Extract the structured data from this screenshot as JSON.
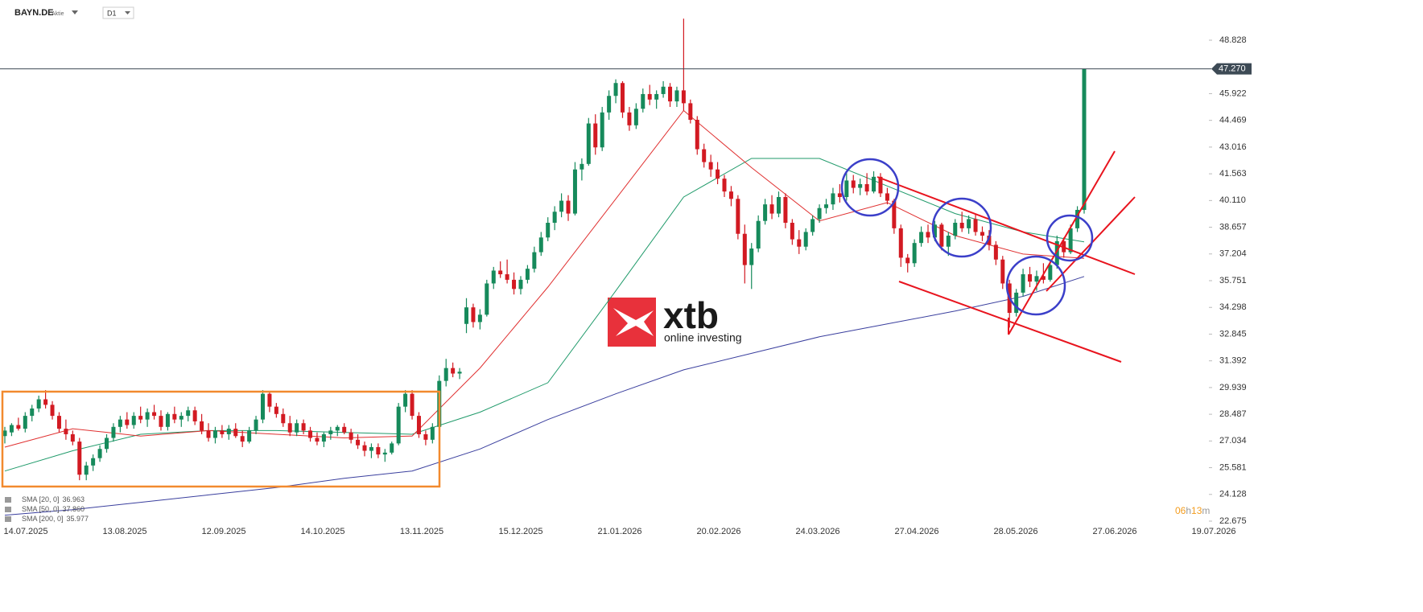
{
  "header": {
    "symbol": "BAYN.DE",
    "kind": "Aktie",
    "timeframe": "D1"
  },
  "watermark": {
    "brand": "xtb",
    "tagline": "online investing"
  },
  "timer": [
    "06",
    "h",
    "13",
    "m"
  ],
  "chart_data": {
    "type": "candlestick",
    "x_labels": [
      "14.07.2025",
      "13.08.2025",
      "12.09.2025",
      "14.10.2025",
      "13.11.2025",
      "15.12.2025",
      "21.01.2026",
      "20.02.2026",
      "24.03.2026",
      "27.04.2026",
      "28.05.2026",
      "27.06.2026",
      "19.07.2026"
    ],
    "ylim": [
      22.675,
      48.828
    ],
    "yticks": [
      {
        "value": 22.675,
        "label": "22.675"
      },
      {
        "value": 24.128,
        "label": "24.128"
      },
      {
        "value": 25.581,
        "label": "25.581"
      },
      {
        "value": 27.034,
        "label": "27.034"
      },
      {
        "value": 28.487,
        "label": "28.487"
      },
      {
        "value": 29.939,
        "label": "29.939"
      },
      {
        "value": 31.392,
        "label": "31.392"
      },
      {
        "value": 32.845,
        "label": "32.845"
      },
      {
        "value": 34.298,
        "label": "34.298"
      },
      {
        "value": 35.751,
        "label": "35.751"
      },
      {
        "value": 37.204,
        "label": "37.204"
      },
      {
        "value": 38.657,
        "label": "38.657"
      },
      {
        "value": 40.11,
        "label": "40.110"
      },
      {
        "value": 41.563,
        "label": "41.563"
      },
      {
        "value": 43.016,
        "label": "43.016"
      },
      {
        "value": 44.469,
        "label": "44.469"
      },
      {
        "value": 45.922,
        "label": "45.922"
      },
      {
        "value": 48.828,
        "label": "48.828"
      }
    ],
    "last_price": {
      "value": 47.27,
      "label": "47.270"
    },
    "up_color": "#168a5b",
    "down_color": "#d21a22",
    "candles": [
      [
        27.3,
        27.8,
        26.9,
        27.6
      ],
      [
        27.5,
        28.0,
        27.3,
        27.9
      ],
      [
        27.9,
        28.3,
        27.6,
        27.7
      ],
      [
        27.7,
        28.6,
        27.5,
        28.4
      ],
      [
        28.4,
        29.0,
        28.1,
        28.8
      ],
      [
        28.8,
        29.5,
        28.6,
        29.3
      ],
      [
        29.3,
        29.8,
        28.8,
        29.0
      ],
      [
        29.0,
        29.2,
        28.2,
        28.4
      ],
      [
        28.4,
        28.6,
        27.5,
        27.7
      ],
      [
        27.7,
        28.2,
        27.1,
        27.4
      ],
      [
        27.4,
        27.6,
        26.8,
        27.0
      ],
      [
        27.0,
        27.2,
        24.9,
        25.2
      ],
      [
        25.2,
        25.9,
        24.9,
        25.7
      ],
      [
        25.7,
        26.3,
        25.4,
        26.1
      ],
      [
        26.1,
        26.8,
        25.9,
        26.6
      ],
      [
        26.6,
        27.4,
        26.4,
        27.2
      ],
      [
        27.2,
        28.0,
        27.0,
        27.8
      ],
      [
        27.8,
        28.4,
        27.5,
        28.2
      ],
      [
        28.2,
        28.6,
        27.7,
        27.9
      ],
      [
        27.9,
        28.6,
        27.7,
        28.4
      ],
      [
        28.4,
        28.9,
        28.0,
        28.2
      ],
      [
        28.2,
        28.8,
        27.8,
        28.6
      ],
      [
        28.6,
        29.0,
        28.2,
        28.4
      ],
      [
        28.4,
        28.7,
        27.6,
        27.8
      ],
      [
        27.8,
        28.6,
        27.6,
        28.5
      ],
      [
        28.5,
        28.9,
        28.0,
        28.2
      ],
      [
        28.2,
        28.6,
        27.8,
        28.4
      ],
      [
        28.4,
        28.9,
        28.1,
        28.7
      ],
      [
        28.7,
        28.9,
        27.9,
        28.1
      ],
      [
        28.1,
        28.5,
        27.4,
        27.6
      ],
      [
        27.6,
        28.0,
        27.0,
        27.2
      ],
      [
        27.2,
        27.8,
        26.9,
        27.6
      ],
      [
        27.6,
        27.9,
        27.2,
        27.4
      ],
      [
        27.4,
        27.9,
        27.1,
        27.7
      ],
      [
        27.7,
        28.0,
        27.2,
        27.3
      ],
      [
        27.3,
        27.6,
        26.7,
        27.0
      ],
      [
        27.0,
        27.8,
        26.9,
        27.6
      ],
      [
        27.6,
        28.4,
        27.4,
        28.2
      ],
      [
        28.2,
        29.8,
        28.0,
        29.6
      ],
      [
        29.6,
        29.7,
        28.6,
        28.9
      ],
      [
        28.9,
        29.1,
        28.3,
        28.5
      ],
      [
        28.5,
        28.8,
        27.8,
        28.0
      ],
      [
        28.0,
        28.4,
        27.3,
        27.5
      ],
      [
        27.5,
        28.2,
        27.3,
        28.0
      ],
      [
        28.0,
        28.2,
        27.4,
        27.6
      ],
      [
        27.6,
        27.8,
        27.0,
        27.2
      ],
      [
        27.2,
        27.5,
        26.8,
        27.0
      ],
      [
        27.0,
        27.5,
        26.7,
        27.4
      ],
      [
        27.4,
        27.8,
        27.1,
        27.6
      ],
      [
        27.6,
        27.9,
        27.3,
        27.8
      ],
      [
        27.8,
        28.0,
        27.4,
        27.5
      ],
      [
        27.5,
        27.7,
        26.9,
        27.1
      ],
      [
        27.1,
        27.4,
        26.6,
        26.8
      ],
      [
        26.8,
        27.0,
        26.2,
        26.5
      ],
      [
        26.5,
        26.9,
        26.1,
        26.7
      ],
      [
        26.7,
        26.9,
        26.1,
        26.3
      ],
      [
        26.3,
        26.6,
        25.9,
        26.4
      ],
      [
        26.4,
        27.0,
        26.3,
        26.9
      ],
      [
        26.9,
        29.1,
        26.8,
        28.9
      ],
      [
        28.9,
        29.8,
        28.6,
        29.6
      ],
      [
        29.6,
        29.8,
        28.2,
        28.4
      ],
      [
        28.4,
        28.6,
        27.2,
        27.4
      ],
      [
        27.4,
        27.6,
        26.8,
        27.1
      ],
      [
        27.1,
        28.0,
        26.9,
        27.8
      ],
      [
        27.8,
        30.6,
        27.7,
        30.3
      ],
      [
        30.3,
        31.5,
        30.0,
        31.0
      ],
      [
        31.0,
        31.3,
        30.5,
        30.7
      ],
      [
        30.7,
        31.0,
        30.4,
        30.8
      ],
      [
        33.4,
        34.8,
        32.9,
        34.3
      ],
      [
        34.3,
        34.5,
        33.2,
        33.5
      ],
      [
        33.5,
        34.2,
        33.1,
        33.9
      ],
      [
        33.9,
        35.8,
        33.8,
        35.6
      ],
      [
        35.6,
        36.5,
        35.3,
        36.3
      ],
      [
        36.3,
        36.8,
        35.9,
        36.1
      ],
      [
        36.1,
        36.9,
        35.6,
        35.8
      ],
      [
        35.8,
        36.2,
        35.0,
        35.3
      ],
      [
        35.3,
        36.0,
        35.0,
        35.8
      ],
      [
        35.8,
        36.6,
        35.6,
        36.4
      ],
      [
        36.4,
        37.6,
        36.2,
        37.3
      ],
      [
        37.3,
        38.4,
        37.1,
        38.1
      ],
      [
        38.1,
        39.2,
        37.9,
        38.9
      ],
      [
        38.9,
        39.8,
        38.5,
        39.5
      ],
      [
        39.5,
        40.5,
        39.2,
        40.1
      ],
      [
        40.1,
        40.4,
        39.0,
        39.4
      ],
      [
        39.4,
        42.2,
        39.3,
        41.8
      ],
      [
        41.8,
        42.4,
        41.2,
        42.1
      ],
      [
        42.1,
        44.6,
        42.0,
        44.3
      ],
      [
        44.3,
        44.8,
        42.6,
        43.0
      ],
      [
        43.0,
        45.2,
        42.8,
        44.9
      ],
      [
        44.9,
        46.1,
        44.5,
        45.8
      ],
      [
        45.8,
        46.7,
        45.4,
        46.5
      ],
      [
        46.5,
        46.6,
        44.6,
        44.9
      ],
      [
        44.9,
        45.2,
        43.9,
        44.2
      ],
      [
        44.2,
        45.4,
        44.0,
        45.1
      ],
      [
        45.1,
        46.2,
        44.9,
        45.9
      ],
      [
        45.9,
        46.4,
        45.3,
        45.6
      ],
      [
        45.6,
        46.1,
        45.1,
        45.9
      ],
      [
        45.9,
        46.6,
        45.7,
        46.3
      ],
      [
        46.3,
        46.5,
        45.2,
        45.5
      ],
      [
        45.5,
        46.3,
        45.2,
        46.1
      ],
      [
        46.1,
        50.0,
        45.0,
        45.4
      ],
      [
        45.4,
        45.6,
        44.3,
        44.5
      ],
      [
        44.5,
        44.7,
        42.6,
        42.9
      ],
      [
        42.9,
        43.2,
        41.9,
        42.2
      ],
      [
        42.2,
        42.6,
        41.4,
        41.8
      ],
      [
        41.8,
        42.2,
        41.0,
        41.3
      ],
      [
        41.3,
        41.5,
        40.3,
        40.6
      ],
      [
        40.6,
        40.9,
        39.8,
        40.2
      ],
      [
        40.2,
        40.4,
        38.0,
        38.3
      ],
      [
        38.3,
        38.8,
        35.6,
        36.6
      ],
      [
        36.6,
        37.8,
        35.3,
        37.5
      ],
      [
        37.5,
        39.3,
        37.3,
        39.0
      ],
      [
        39.0,
        40.2,
        38.8,
        39.9
      ],
      [
        39.9,
        40.4,
        39.1,
        39.4
      ],
      [
        39.4,
        40.6,
        39.2,
        40.3
      ],
      [
        40.3,
        40.5,
        38.6,
        38.9
      ],
      [
        38.9,
        39.1,
        37.7,
        38.0
      ],
      [
        38.0,
        38.5,
        37.2,
        37.6
      ],
      [
        37.6,
        38.6,
        37.4,
        38.4
      ],
      [
        38.4,
        39.3,
        38.2,
        39.1
      ],
      [
        39.1,
        39.9,
        38.9,
        39.7
      ],
      [
        39.7,
        40.2,
        39.4,
        39.9
      ],
      [
        39.9,
        40.8,
        39.6,
        40.5
      ],
      [
        40.5,
        41.0,
        40.0,
        40.3
      ],
      [
        40.3,
        41.6,
        40.1,
        41.2
      ],
      [
        41.2,
        41.5,
        40.5,
        40.8
      ],
      [
        40.8,
        41.3,
        40.4,
        41.0
      ],
      [
        41.0,
        41.6,
        40.4,
        40.6
      ],
      [
        40.6,
        41.7,
        40.5,
        41.4
      ],
      [
        41.4,
        41.6,
        40.3,
        40.5
      ],
      [
        40.5,
        40.8,
        39.9,
        40.1
      ],
      [
        40.1,
        40.2,
        38.3,
        38.6
      ],
      [
        38.6,
        38.8,
        36.5,
        37.0
      ],
      [
        37.0,
        37.2,
        36.2,
        36.7
      ],
      [
        36.7,
        38.0,
        36.5,
        37.8
      ],
      [
        37.8,
        38.7,
        37.6,
        38.4
      ],
      [
        38.4,
        38.8,
        37.8,
        38.1
      ],
      [
        38.1,
        39.0,
        37.9,
        38.8
      ],
      [
        38.8,
        38.9,
        37.4,
        37.6
      ],
      [
        37.6,
        38.4,
        37.1,
        38.2
      ],
      [
        38.2,
        39.1,
        38.0,
        38.9
      ],
      [
        38.9,
        39.5,
        38.4,
        38.6
      ],
      [
        38.6,
        39.3,
        38.3,
        39.1
      ],
      [
        39.1,
        39.4,
        38.2,
        38.4
      ],
      [
        38.4,
        38.7,
        37.9,
        38.2
      ],
      [
        38.2,
        38.5,
        37.4,
        37.7
      ],
      [
        37.7,
        37.9,
        36.6,
        36.9
      ],
      [
        36.9,
        37.1,
        35.3,
        35.6
      ],
      [
        35.6,
        35.8,
        33.2,
        34.0
      ],
      [
        34.0,
        35.3,
        33.8,
        35.1
      ],
      [
        35.1,
        36.4,
        34.9,
        36.1
      ],
      [
        36.1,
        36.5,
        35.4,
        35.7
      ],
      [
        35.7,
        36.3,
        35.2,
        36.0
      ],
      [
        36.0,
        36.7,
        35.6,
        35.8
      ],
      [
        35.8,
        36.9,
        35.7,
        36.6
      ],
      [
        36.6,
        38.2,
        36.4,
        37.9
      ],
      [
        37.9,
        38.1,
        37.0,
        37.3
      ],
      [
        37.3,
        38.8,
        37.2,
        38.6
      ],
      [
        38.6,
        39.8,
        38.4,
        39.6
      ],
      [
        39.6,
        47.27,
        39.4,
        47.27
      ]
    ],
    "indicators": [
      {
        "name": "SMA [200, 0]",
        "legend_value": "35.977",
        "color": "#3a3f9e",
        "x": [
          0,
          10,
          20,
          30,
          40,
          50,
          60,
          70,
          80,
          90,
          100,
          110,
          120,
          130,
          140,
          150,
          159
        ],
        "values": [
          23.0,
          23.3,
          23.7,
          24.1,
          24.5,
          25.0,
          25.4,
          26.6,
          28.2,
          29.6,
          30.9,
          31.8,
          32.7,
          33.4,
          34.1,
          34.9,
          35.977
        ]
      },
      {
        "name": "SMA [50, 0]",
        "legend_value": "37.860",
        "color": "#1f9a6a",
        "x": [
          0,
          10,
          20,
          30,
          40,
          50,
          60,
          70,
          80,
          90,
          100,
          110,
          120,
          130,
          140,
          150,
          159
        ],
        "values": [
          25.4,
          26.5,
          27.4,
          27.6,
          27.6,
          27.5,
          27.4,
          28.6,
          30.2,
          35.2,
          40.3,
          42.4,
          42.4,
          40.9,
          39.4,
          38.4,
          37.86
        ]
      },
      {
        "name": "SMA [20, 0]",
        "legend_value": "36.963",
        "color": "#e03030",
        "x": [
          0,
          10,
          20,
          30,
          40,
          50,
          60,
          70,
          80,
          90,
          100,
          110,
          120,
          130,
          140,
          150,
          159
        ],
        "values": [
          26.7,
          27.7,
          27.3,
          27.6,
          27.4,
          27.2,
          27.3,
          31.0,
          35.4,
          40.2,
          45.0,
          41.9,
          39.0,
          40.0,
          38.2,
          37.2,
          36.963
        ]
      }
    ]
  }
}
